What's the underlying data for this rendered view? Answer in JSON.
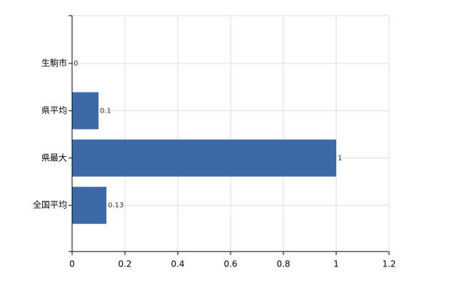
{
  "chart_data": {
    "type": "hbar",
    "categories": [
      "生駒市",
      "県平均",
      "県最大",
      "全国平均"
    ],
    "values": [
      0,
      0.1,
      1,
      0.13
    ],
    "color": "#3b6aa6",
    "xlim": [
      0,
      1.2
    ],
    "xticks": [
      0,
      0.2,
      0.4,
      0.6,
      0.8,
      1,
      1.2
    ],
    "grid": true
  }
}
